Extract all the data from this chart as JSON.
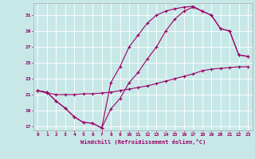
{
  "xlabel": "Windchill (Refroidissement éolien,°C)",
  "bg_color": "#c8e8e8",
  "line_color": "#990066",
  "grid_color": "#ffffff",
  "xlim": [
    -0.5,
    23.5
  ],
  "ylim": [
    16.5,
    32.5
  ],
  "xticks": [
    0,
    1,
    2,
    3,
    4,
    5,
    6,
    7,
    8,
    9,
    10,
    11,
    12,
    13,
    14,
    15,
    16,
    17,
    18,
    19,
    20,
    21,
    22,
    23
  ],
  "yticks": [
    17,
    19,
    21,
    23,
    25,
    27,
    29,
    31
  ],
  "line1": {
    "x": [
      0,
      1,
      2,
      3,
      4,
      5,
      6,
      7,
      8,
      9,
      10,
      11,
      12,
      13,
      14,
      15,
      16,
      17,
      18,
      19,
      20,
      21,
      22,
      23
    ],
    "y": [
      21.5,
      21.3,
      20.2,
      19.3,
      18.2,
      17.5,
      17.4,
      16.8,
      22.5,
      24.5,
      27.0,
      28.5,
      30.0,
      31.0,
      31.5,
      31.8,
      32.0,
      32.1,
      31.5,
      31.0,
      29.3,
      29.0,
      26.0,
      25.8
    ]
  },
  "line2": {
    "x": [
      0,
      1,
      2,
      3,
      4,
      5,
      6,
      7,
      8,
      9,
      10,
      11,
      12,
      13,
      14,
      15,
      16,
      17,
      18,
      19,
      20,
      21,
      22,
      23
    ],
    "y": [
      21.5,
      21.3,
      20.2,
      19.3,
      18.2,
      17.5,
      17.4,
      16.8,
      19.2,
      20.5,
      22.5,
      23.8,
      25.5,
      27.0,
      29.0,
      30.5,
      31.5,
      32.0,
      31.5,
      31.0,
      29.3,
      29.0,
      26.0,
      25.8
    ]
  },
  "line3": {
    "x": [
      0,
      1,
      2,
      3,
      4,
      5,
      6,
      7,
      8,
      9,
      10,
      11,
      12,
      13,
      14,
      15,
      16,
      17,
      18,
      19,
      20,
      21,
      22,
      23
    ],
    "y": [
      21.5,
      21.2,
      21.0,
      21.0,
      21.0,
      21.1,
      21.1,
      21.2,
      21.3,
      21.5,
      21.7,
      21.9,
      22.1,
      22.4,
      22.7,
      23.0,
      23.3,
      23.6,
      24.0,
      24.2,
      24.3,
      24.4,
      24.5,
      24.5
    ]
  }
}
